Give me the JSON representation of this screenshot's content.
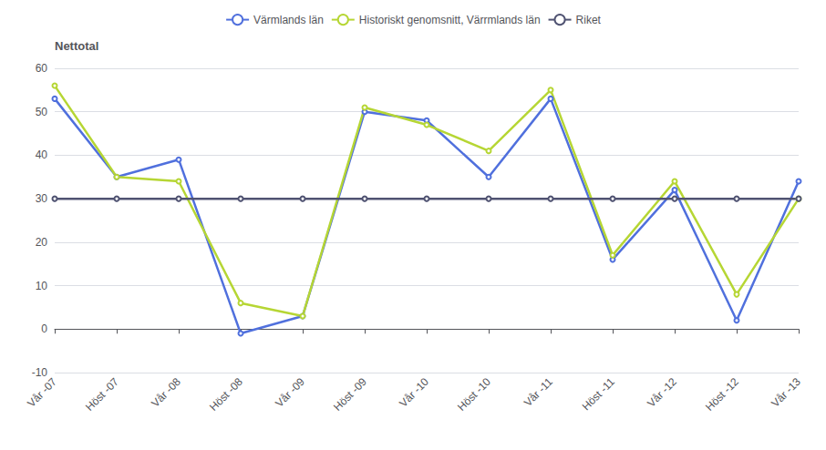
{
  "chart_data": {
    "type": "line",
    "ylabel": "Nettotal",
    "categories": [
      "Vår -07",
      "Höst -07",
      "Vår -08",
      "Höst -08",
      "Vår -09",
      "Höst -09",
      "Vår -10",
      "Höst -10",
      "Vår -11",
      "Höst -11",
      "Vår -12",
      "Höst -12",
      "Vår -13"
    ],
    "series": [
      {
        "name": "Värmlands län",
        "values": [
          53,
          35,
          39,
          -1,
          3,
          50,
          48,
          35,
          53,
          16,
          32,
          2,
          34
        ]
      },
      {
        "name": "Historiskt genomsnitt, Värrmlands län",
        "values": [
          56,
          35,
          34,
          6,
          3,
          51,
          47,
          41,
          55,
          17,
          34,
          8,
          30
        ]
      },
      {
        "name": "Riket",
        "values": [
          30,
          30,
          30,
          30,
          30,
          30,
          30,
          30,
          30,
          30,
          30,
          30,
          30
        ]
      }
    ],
    "ylim": [
      -10,
      60
    ],
    "yticks": [
      -10,
      0,
      10,
      20,
      30,
      40,
      50,
      60
    ],
    "grid": true,
    "legend": "top"
  }
}
